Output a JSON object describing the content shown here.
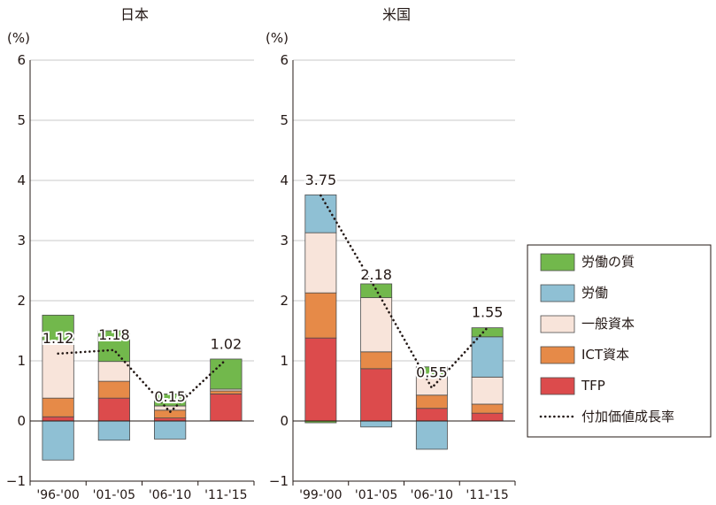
{
  "chart_data": [
    {
      "type": "bar",
      "stacked": true,
      "title": "日本",
      "ylabel": "(%)",
      "ylim": [
        -1,
        6
      ],
      "yticks": [
        "−1",
        "0",
        "1",
        "2",
        "3",
        "4",
        "5",
        "6"
      ],
      "categories": [
        "'96-'00",
        "'01-'05",
        "'06-'10",
        "'11-'15"
      ],
      "grid": true,
      "series": [
        {
          "name": "TFP",
          "values": [
            0.07,
            0.38,
            0.05,
            0.45
          ]
        },
        {
          "name": "ICT資本",
          "values": [
            0.31,
            0.28,
            0.13,
            0.05
          ]
        },
        {
          "name": "一般資本",
          "values": [
            0.9,
            0.33,
            0.07,
            0.03
          ]
        },
        {
          "name": "労働",
          "values": [
            -0.65,
            -0.32,
            -0.3,
            0.0
          ]
        },
        {
          "name": "労働の質",
          "values": [
            0.48,
            0.51,
            0.2,
            0.5
          ]
        }
      ],
      "line": {
        "name": "付加価値成長率",
        "values": [
          1.12,
          1.18,
          0.15,
          1.02
        ]
      },
      "line_labels": [
        "1.12",
        "1.18",
        "0.15",
        "1.02"
      ]
    },
    {
      "type": "bar",
      "stacked": true,
      "title": "米国",
      "ylabel": "(%)",
      "ylim": [
        -1,
        6
      ],
      "yticks": [
        "−1",
        "0",
        "1",
        "2",
        "3",
        "4",
        "5",
        "6"
      ],
      "categories": [
        "'99-'00",
        "'01-'05",
        "'06-'10",
        "'11-'15"
      ],
      "grid": true,
      "series": [
        {
          "name": "TFP",
          "values": [
            1.38,
            0.87,
            0.21,
            0.13
          ]
        },
        {
          "name": "ICT資本",
          "values": [
            0.75,
            0.28,
            0.22,
            0.15
          ]
        },
        {
          "name": "一般資本",
          "values": [
            1.0,
            0.9,
            0.32,
            0.45
          ]
        },
        {
          "name": "労働",
          "values": [
            0.63,
            -0.1,
            -0.47,
            0.67
          ]
        },
        {
          "name": "労働の質",
          "values": [
            -0.03,
            0.23,
            0.15,
            0.15
          ]
        }
      ],
      "line": {
        "name": "付加価値成長率",
        "values": [
          3.75,
          2.18,
          0.55,
          1.55
        ]
      },
      "line_labels": [
        "3.75",
        "2.18",
        "0.55",
        "1.55"
      ]
    }
  ],
  "legend": {
    "placement": "right",
    "items": [
      {
        "label": "労働の質",
        "color": "#72b84c",
        "kind": "box"
      },
      {
        "label": "労働",
        "color": "#8fc0d4",
        "kind": "box"
      },
      {
        "label": "一般資本",
        "color": "#f8e4da",
        "kind": "box"
      },
      {
        "label": "ICT資本",
        "color": "#e68a48",
        "kind": "box"
      },
      {
        "label": "TFP",
        "color": "#dc4b4c",
        "kind": "box"
      },
      {
        "label": "付加価値成長率",
        "color": "#231815",
        "kind": "dotted-line"
      }
    ]
  },
  "colors": {
    "TFP": "#dc4b4c",
    "ICT資本": "#e68a48",
    "一般資本": "#f8e4da",
    "労働": "#8fc0d4",
    "労働の質": "#72b84c",
    "line": "#231815"
  }
}
